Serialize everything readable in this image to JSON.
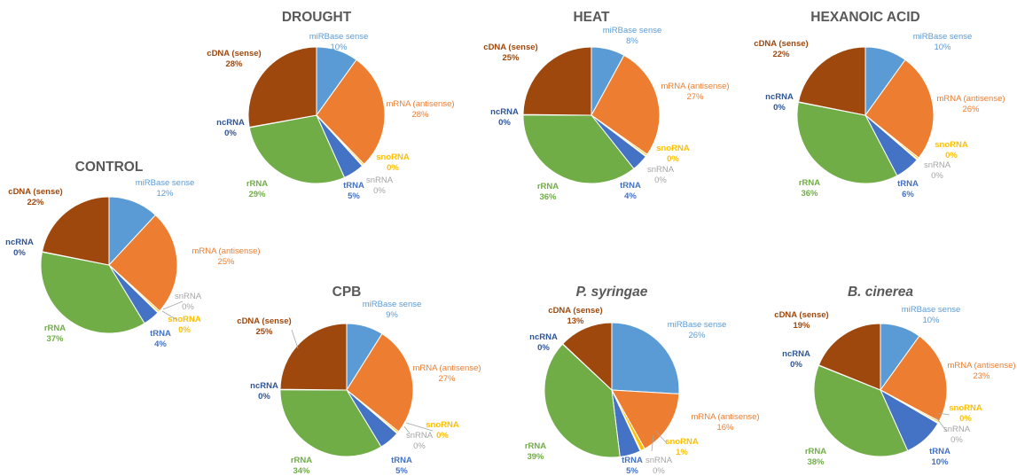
{
  "colors": {
    "mirbase": "#5b9bd5",
    "mrna": "#ed7d31",
    "snorna": "#ffc000",
    "snrna": "#a5a5a5",
    "trna": "#4472c4",
    "rrna": "#70ad47",
    "ncrna": "#2f5597",
    "cdna": "#9e480e",
    "title": "#595959"
  },
  "category_keys": [
    "mirbase",
    "mrna",
    "snorna",
    "snrna",
    "trna",
    "rrna",
    "ncrna",
    "cdna"
  ],
  "category_names": {
    "mirbase": "miRBase sense",
    "mrna": "mRNA (antisense)",
    "snorna": "snoRNA",
    "snrna": "snRNA",
    "trna": "tRNA",
    "rrna": "rRNA",
    "ncrna": "ncRNA",
    "cdna": "cDNA (sense)"
  },
  "chart_data": [
    {
      "type": "pie",
      "title": "CONTROL",
      "categories": [
        "miRBase sense",
        "mRNA (antisense)",
        "snoRNA",
        "snRNA",
        "tRNA",
        "rRNA",
        "ncRNA",
        "cDNA (sense)"
      ],
      "values": [
        12,
        25,
        0.4,
        0.2,
        4,
        37,
        0.1,
        22
      ],
      "value_labels": [
        "12%",
        "25%",
        "0%",
        "0%",
        "4%",
        "37%",
        "0%",
        "22%"
      ]
    },
    {
      "type": "pie",
      "title": "DROUGHT",
      "categories": [
        "miRBase sense",
        "mRNA (antisense)",
        "snoRNA",
        "snRNA",
        "tRNA",
        "rRNA",
        "ncRNA",
        "cDNA (sense)"
      ],
      "values": [
        10,
        28,
        0.4,
        0.2,
        5,
        29,
        0.1,
        28
      ],
      "value_labels": [
        "10%",
        "28%",
        "0%",
        "0%",
        "5%",
        "29%",
        "0%",
        "28%"
      ]
    },
    {
      "type": "pie",
      "title": "HEAT",
      "categories": [
        "miRBase sense",
        "mRNA (antisense)",
        "snoRNA",
        "snRNA",
        "tRNA",
        "rRNA",
        "ncRNA",
        "cDNA (sense)"
      ],
      "values": [
        8,
        27,
        0.4,
        0.2,
        4,
        36,
        0.1,
        25
      ],
      "value_labels": [
        "8%",
        "27%",
        "0%",
        "0%",
        "4%",
        "36%",
        "0%",
        "25%"
      ]
    },
    {
      "type": "pie",
      "title": "HEXANOIC ACID",
      "categories": [
        "miRBase sense",
        "mRNA (antisense)",
        "snoRNA",
        "snRNA",
        "tRNA",
        "rRNA",
        "ncRNA",
        "cDNA (sense)"
      ],
      "values": [
        10,
        26,
        0.4,
        0.2,
        6,
        36,
        0.1,
        22
      ],
      "value_labels": [
        "10%",
        "26%",
        "0%",
        "0%",
        "6%",
        "36%",
        "0%",
        "22%"
      ]
    },
    {
      "type": "pie",
      "title": "CPB",
      "categories": [
        "miRBase sense",
        "mRNA (antisense)",
        "snoRNA",
        "snRNA",
        "tRNA",
        "rRNA",
        "ncRNA",
        "cDNA (sense)"
      ],
      "values": [
        9,
        27,
        0.4,
        0.2,
        5,
        34,
        0.1,
        25
      ],
      "value_labels": [
        "9%",
        "27%",
        "0%",
        "0%",
        "5%",
        "34%",
        "0%",
        "25%"
      ]
    },
    {
      "type": "pie",
      "title": "P. syringae",
      "categories": [
        "miRBase sense",
        "mRNA (antisense)",
        "snoRNA",
        "snRNA",
        "tRNA",
        "rRNA",
        "ncRNA",
        "cDNA (sense)"
      ],
      "values": [
        26,
        16,
        1,
        0.2,
        5,
        39,
        0.1,
        13
      ],
      "value_labels": [
        "26%",
        "16%",
        "1%",
        "0%",
        "5%",
        "39%",
        "0%",
        "13%"
      ]
    },
    {
      "type": "pie",
      "title": "B. cinerea",
      "categories": [
        "miRBase sense",
        "mRNA (antisense)",
        "snoRNA",
        "snRNA",
        "tRNA",
        "rRNA",
        "ncRNA",
        "cDNA (sense)"
      ],
      "values": [
        10,
        23,
        0.4,
        0.2,
        10,
        38,
        0.1,
        19
      ],
      "value_labels": [
        "10%",
        "23%",
        "0%",
        "0%",
        "10%",
        "38%",
        "0%",
        "19%"
      ]
    }
  ]
}
